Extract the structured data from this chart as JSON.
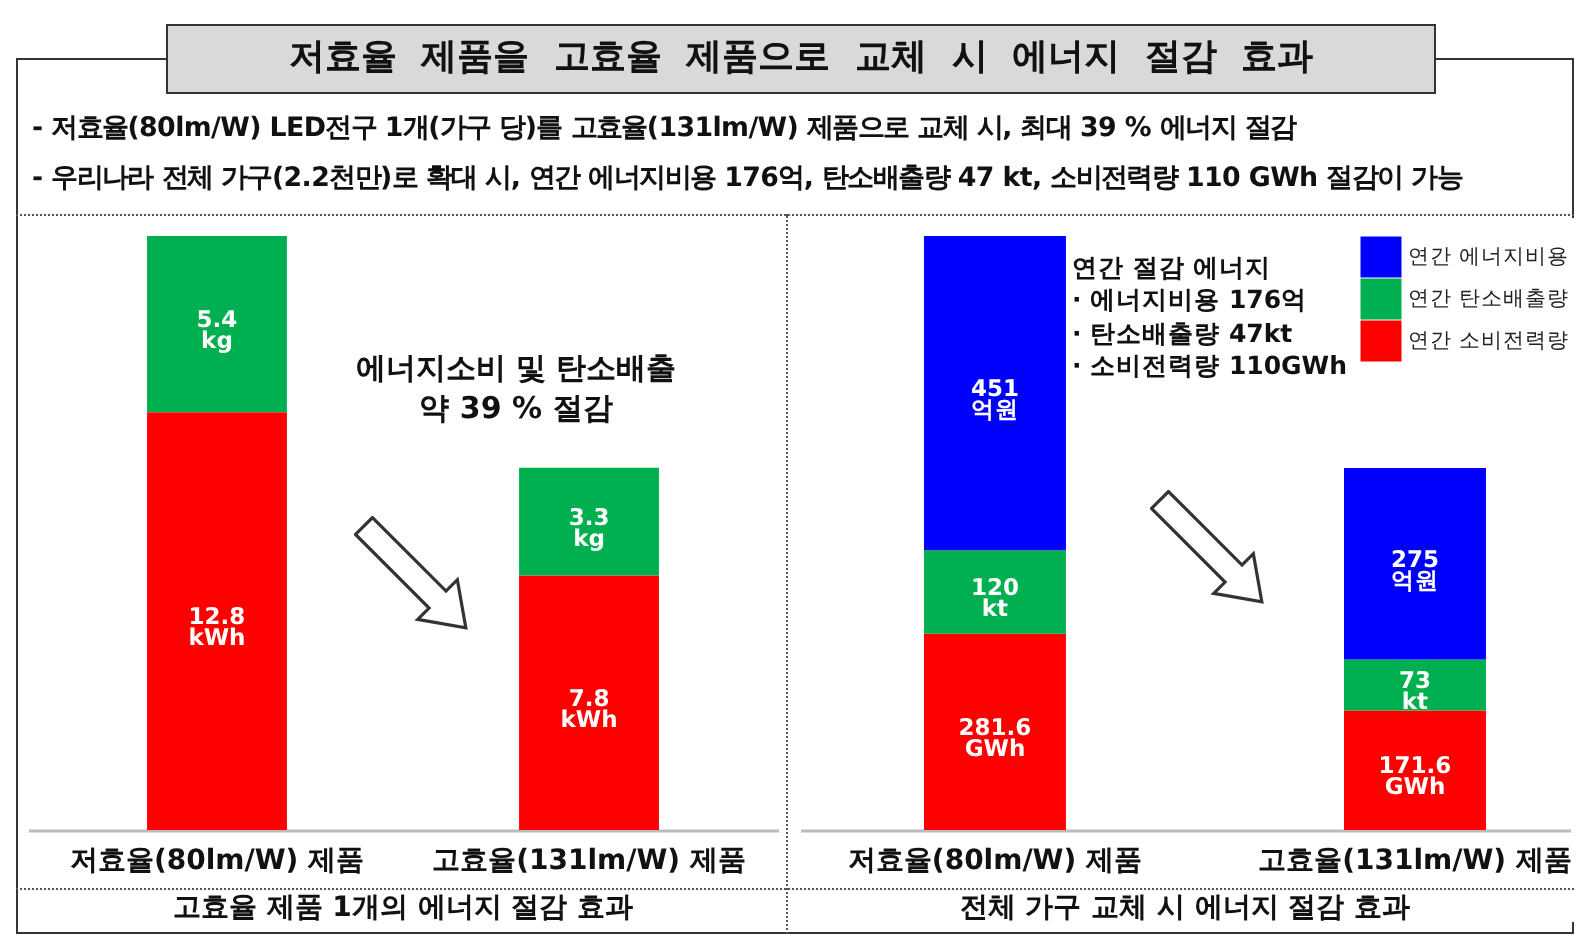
{
  "chart_data": [
    {
      "type": "other",
      "title": "저효율 제품을 고효율 제품으로 교체 시 에너지 절감 효과",
      "annotations": [
        "- 저효율(80lm/W) LED전구 1개(가구 당)를 고효율(131lm/W) 제품으로 교체 시, 최대 39 % 에너지 절감",
        "- 우리나라 전체 가구(2.2천만)로 확대 시, 연간 에너지비용 176억, 탄소배출량 47 kt, 소비전력량 110 GWh 절감이 가능"
      ]
    },
    {
      "type": "bar",
      "title": "고효율 제품 1개의 에너지 절감 효과",
      "categories": [
        "저효율(80lm/W) 제품",
        "고효율(131lm/W) 제품"
      ],
      "stacked": true,
      "tick_labels": "x",
      "series": [
        {
          "color": "#ff0000",
          "values": [
            12.8,
            7.8
          ],
          "value_labels": [
            "12.8\nkWh",
            "7.8\nkWh"
          ]
        },
        {
          "color": "#00b050",
          "values": [
            5.4,
            3.3
          ],
          "value_labels": [
            "5.4\nkg",
            "3.3\nkg"
          ]
        }
      ],
      "annotations": [
        "에너지소비 및 탄소배출\n약 39 % 절감"
      ]
    },
    {
      "type": "bar",
      "title": "전체 가구 교체 시 에너지 절감 효과",
      "categories": [
        "저효율(80lm/W) 제품",
        "고효율(131lm/W) 제품"
      ],
      "stacked": true,
      "tick_labels": "x",
      "legend": "top right",
      "series": [
        {
          "name": "연간 소비전력량",
          "color": "#ff0000",
          "values": [
            281.6,
            171.6
          ],
          "value_labels": [
            "281.6\nGWh",
            "171.6\nGWh"
          ]
        },
        {
          "name": "연간 탄소배출량",
          "color": "#00b050",
          "values": [
            120,
            73
          ],
          "value_labels": [
            "120\nkt",
            "73\nkt"
          ]
        },
        {
          "name": "연간 에너지비용",
          "color": "#0000ff",
          "values": [
            451,
            275
          ],
          "value_labels": [
            "451\n억원",
            "275\n억원"
          ]
        }
      ],
      "annotations": [
        "연간 절감 에너지\n· 에너지비용 176억\n· 탄소배출량 47kt\n· 소비전력량 110GWh"
      ]
    }
  ]
}
